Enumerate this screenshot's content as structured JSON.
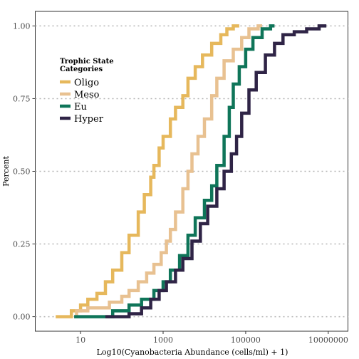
{
  "chart_data": {
    "type": "line",
    "xlabel": "Log10(Cyanobacteria Abundance (cells/ml) + 1)",
    "ylabel": "Percent",
    "x_scale": "log10",
    "xlim": [
      0.8,
      30000000
    ],
    "ylim": [
      -0.05,
      1.05
    ],
    "x_ticks": [
      10,
      1000,
      100000,
      10000000
    ],
    "x_tick_labels": [
      "10",
      "1000",
      "100000",
      "10000000"
    ],
    "y_ticks": [
      0,
      0.25,
      0.5,
      0.75,
      1
    ],
    "y_tick_labels": [
      "0.00",
      "0.25",
      "0.50",
      "0.75",
      "1.00"
    ],
    "grid": "dotted horizontal at y ticks",
    "legend": {
      "title_lines": [
        "Trophic State",
        "Categories"
      ],
      "placement": "top-left"
    },
    "series": [
      {
        "name": "Oligo",
        "color": "#e6b85c",
        "points": [
          [
            2.5,
            0
          ],
          [
            3,
            0
          ],
          [
            6,
            0.02
          ],
          [
            10,
            0.04
          ],
          [
            15,
            0.06
          ],
          [
            25,
            0.08
          ],
          [
            40,
            0.12
          ],
          [
            60,
            0.16
          ],
          [
            100,
            0.22
          ],
          [
            150,
            0.28
          ],
          [
            250,
            0.36
          ],
          [
            350,
            0.42
          ],
          [
            500,
            0.48
          ],
          [
            600,
            0.52
          ],
          [
            800,
            0.58
          ],
          [
            1000,
            0.62
          ],
          [
            1500,
            0.68
          ],
          [
            2000,
            0.72
          ],
          [
            3000,
            0.76
          ],
          [
            4000,
            0.82
          ],
          [
            6000,
            0.86
          ],
          [
            9000,
            0.9
          ],
          [
            15000,
            0.94
          ],
          [
            25000,
            0.97
          ],
          [
            35000,
            0.99
          ],
          [
            50000,
            1
          ],
          [
            70000,
            1
          ]
        ]
      },
      {
        "name": "Meso",
        "color": "#e8c191",
        "points": [
          [
            7,
            0
          ],
          [
            8,
            0.02
          ],
          [
            15,
            0.03
          ],
          [
            30,
            0.03
          ],
          [
            50,
            0.05
          ],
          [
            100,
            0.07
          ],
          [
            150,
            0.09
          ],
          [
            250,
            0.12
          ],
          [
            400,
            0.15
          ],
          [
            600,
            0.18
          ],
          [
            900,
            0.22
          ],
          [
            1200,
            0.26
          ],
          [
            1500,
            0.3
          ],
          [
            2000,
            0.36
          ],
          [
            3000,
            0.44
          ],
          [
            4000,
            0.5
          ],
          [
            5000,
            0.56
          ],
          [
            7000,
            0.62
          ],
          [
            10000,
            0.68
          ],
          [
            15000,
            0.76
          ],
          [
            20000,
            0.82
          ],
          [
            30000,
            0.88
          ],
          [
            50000,
            0.92
          ],
          [
            80000,
            0.96
          ],
          [
            120000,
            0.99
          ],
          [
            200000,
            1
          ],
          [
            250000,
            1
          ]
        ]
      },
      {
        "name": "Eu",
        "color": "#0f7559",
        "points": [
          [
            7,
            0
          ],
          [
            30,
            0
          ],
          [
            60,
            0.02
          ],
          [
            150,
            0.04
          ],
          [
            300,
            0.06
          ],
          [
            600,
            0.09
          ],
          [
            1000,
            0.12
          ],
          [
            1500,
            0.16
          ],
          [
            2500,
            0.21
          ],
          [
            4000,
            0.28
          ],
          [
            6000,
            0.34
          ],
          [
            10000,
            0.4
          ],
          [
            15000,
            0.45
          ],
          [
            20000,
            0.52
          ],
          [
            30000,
            0.62
          ],
          [
            40000,
            0.72
          ],
          [
            50000,
            0.8
          ],
          [
            70000,
            0.86
          ],
          [
            100000,
            0.92
          ],
          [
            150000,
            0.96
          ],
          [
            250000,
            0.99
          ],
          [
            400000,
            1
          ],
          [
            500000,
            1
          ]
        ]
      },
      {
        "name": "Hyper",
        "color": "#2f2446",
        "points": [
          [
            40,
            0
          ],
          [
            150,
            0.01
          ],
          [
            300,
            0.03
          ],
          [
            500,
            0.06
          ],
          [
            800,
            0.09
          ],
          [
            1200,
            0.12
          ],
          [
            2000,
            0.16
          ],
          [
            3000,
            0.2
          ],
          [
            5000,
            0.26
          ],
          [
            8000,
            0.32
          ],
          [
            12000,
            0.38
          ],
          [
            20000,
            0.44
          ],
          [
            30000,
            0.5
          ],
          [
            45000,
            0.56
          ],
          [
            60000,
            0.62
          ],
          [
            80000,
            0.7
          ],
          [
            120000,
            0.78
          ],
          [
            180000,
            0.84
          ],
          [
            300000,
            0.9
          ],
          [
            500000,
            0.94
          ],
          [
            800000,
            0.97
          ],
          [
            1500000,
            0.98
          ],
          [
            3000000,
            0.99
          ],
          [
            6000000,
            1
          ],
          [
            9000000,
            1
          ]
        ]
      }
    ]
  }
}
